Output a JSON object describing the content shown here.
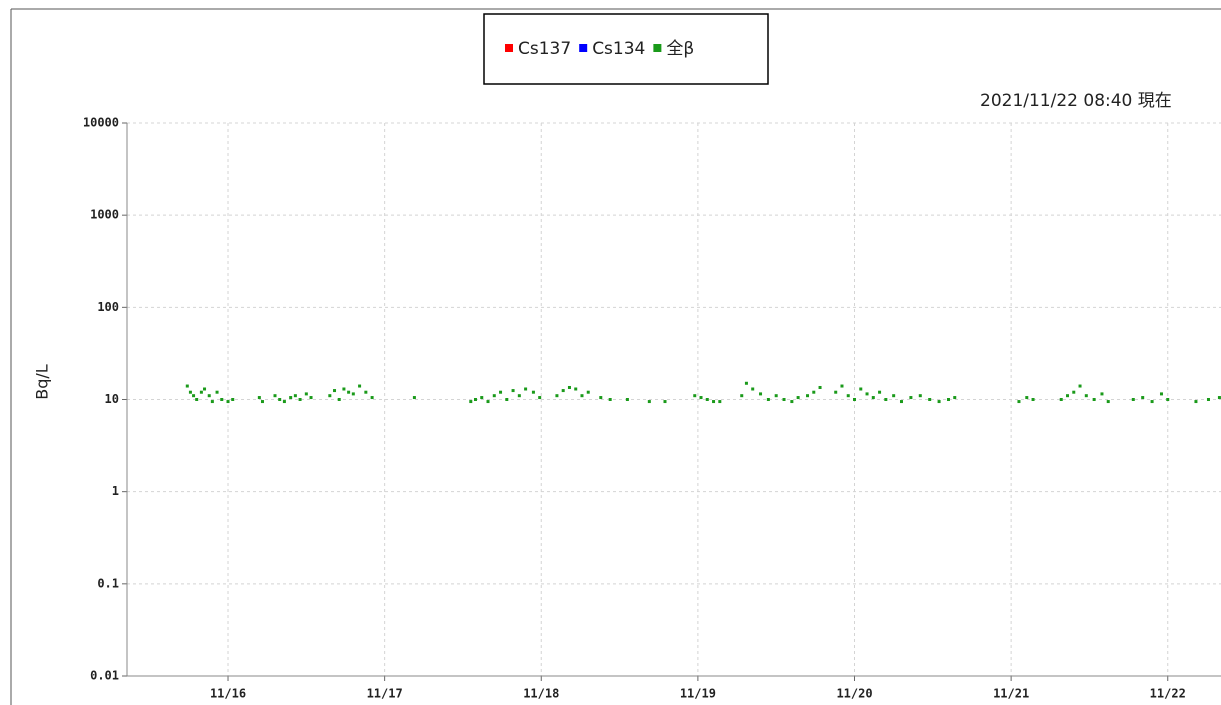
{
  "chart_data": {
    "type": "scatter",
    "subtitle": "2021/11/22 08:40 現在",
    "ylabel": "Bq/L",
    "log_y": true,
    "grid": true,
    "ylim": [
      0.01,
      10000
    ],
    "yticks": [
      0.01,
      0.1,
      1,
      10,
      100,
      1000,
      10000
    ],
    "xlim": [
      15.355,
      22.34
    ],
    "xticks": [
      {
        "value": 16,
        "label": "11/16"
      },
      {
        "value": 17,
        "label": "11/17"
      },
      {
        "value": 18,
        "label": "11/18"
      },
      {
        "value": 19,
        "label": "11/19"
      },
      {
        "value": 20,
        "label": "11/20"
      },
      {
        "value": 21,
        "label": "11/21"
      },
      {
        "value": 22,
        "label": "11/22"
      }
    ],
    "series": [
      {
        "name": "Cs137",
        "color": "#ff0000",
        "x": [],
        "values": []
      },
      {
        "name": "Cs134",
        "color": "#0000ff",
        "x": [],
        "values": []
      },
      {
        "name": "全β",
        "color": "#1a9a1a",
        "x": [
          15.74,
          15.76,
          15.78,
          15.8,
          15.83,
          15.85,
          15.88,
          15.9,
          15.93,
          15.96,
          16.0,
          16.03,
          16.2,
          16.22,
          16.3,
          16.33,
          16.36,
          16.4,
          16.43,
          16.46,
          16.5,
          16.53,
          16.65,
          16.68,
          16.71,
          16.74,
          16.77,
          16.8,
          16.84,
          16.88,
          16.92,
          17.19,
          17.55,
          17.58,
          17.62,
          17.66,
          17.7,
          17.74,
          17.78,
          17.82,
          17.86,
          17.9,
          17.95,
          17.99,
          18.1,
          18.14,
          18.18,
          18.22,
          18.26,
          18.3,
          18.38,
          18.44,
          18.55,
          18.69,
          18.79,
          18.98,
          19.02,
          19.06,
          19.1,
          19.14,
          19.28,
          19.31,
          19.35,
          19.4,
          19.45,
          19.5,
          19.55,
          19.6,
          19.64,
          19.7,
          19.74,
          19.78,
          19.88,
          19.92,
          19.96,
          20.0,
          20.04,
          20.08,
          20.12,
          20.16,
          20.2,
          20.25,
          20.3,
          20.36,
          20.42,
          20.48,
          20.54,
          20.6,
          20.64,
          21.05,
          21.1,
          21.14,
          21.32,
          21.36,
          21.4,
          21.44,
          21.48,
          21.53,
          21.58,
          21.62,
          21.78,
          21.84,
          21.9,
          21.96,
          22.0,
          22.18,
          22.26,
          22.33
        ],
        "values": [
          14,
          12,
          11,
          10,
          12,
          13,
          11,
          9.5,
          12,
          10,
          9.5,
          10,
          10.5,
          9.5,
          11,
          10,
          9.5,
          10.5,
          11,
          10,
          11.5,
          10.5,
          11,
          12.5,
          10,
          13,
          12,
          11.5,
          14,
          12,
          10.5,
          10.5,
          9.5,
          10,
          10.5,
          9.5,
          11,
          12,
          10,
          12.5,
          11,
          13,
          12,
          10.5,
          11,
          12.5,
          13.5,
          13,
          11,
          12,
          10.5,
          10,
          10,
          9.5,
          9.5,
          11,
          10.5,
          10,
          9.5,
          9.5,
          11,
          15,
          13,
          11.5,
          10,
          11,
          10,
          9.5,
          10.5,
          11,
          12,
          13.5,
          12,
          14,
          11,
          10,
          13,
          11.5,
          10.5,
          12,
          10,
          11,
          9.5,
          10.5,
          11,
          10,
          9.5,
          10,
          10.5,
          9.5,
          10.5,
          10,
          10,
          11,
          12,
          14,
          11,
          10,
          11.5,
          9.5,
          10,
          10.5,
          9.5,
          11.5,
          10,
          9.5,
          10,
          10.5
        ]
      }
    ]
  }
}
